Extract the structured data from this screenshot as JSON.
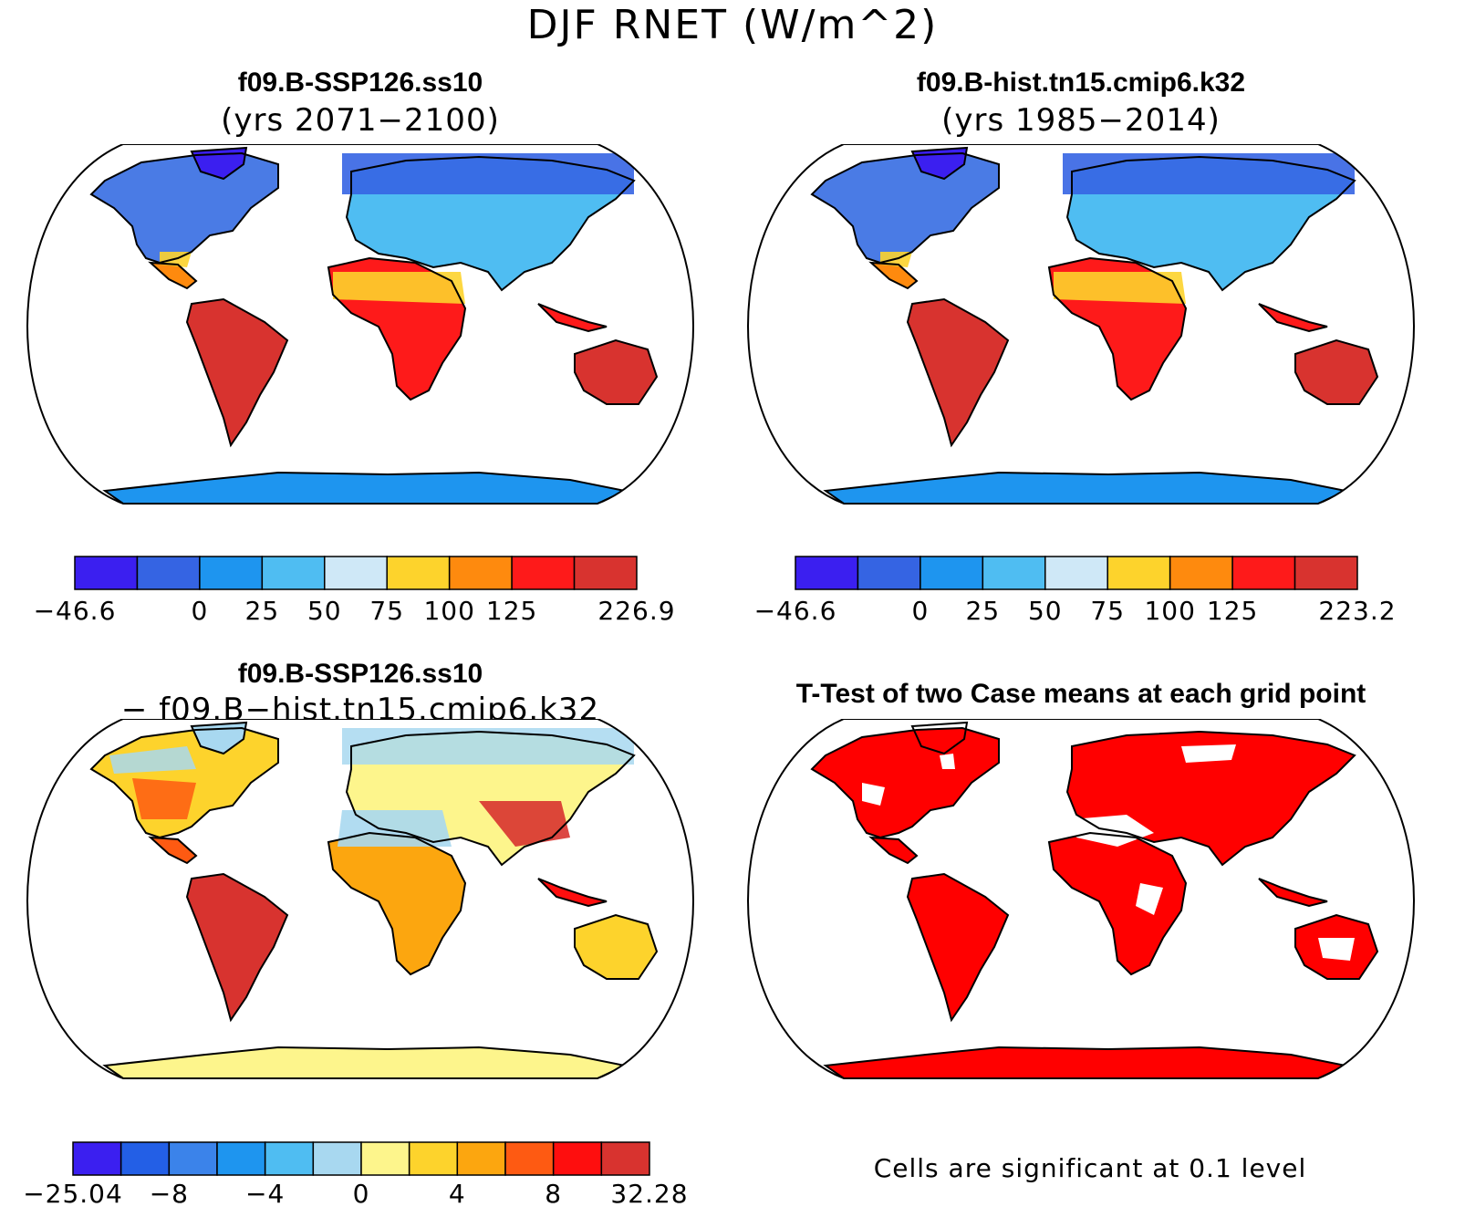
{
  "figure": {
    "title": "DJF RNET (W/m^2)"
  },
  "panels": [
    {
      "id": "future",
      "title_line1": "f09.B-SSP126.ss10",
      "title_line2": "(yrs 2071−2100)",
      "type": "filled contour map",
      "colorbar": {
        "colors": [
          "#3b1ff0",
          "#3564e3",
          "#1e95ef",
          "#4fbdf2",
          "#cfe8f7",
          "#fdd32c",
          "#fe8a0e",
          "#fe1a1a",
          "#d8332f"
        ],
        "labels": [
          "−46.6",
          "0",
          "25",
          "50",
          "75",
          "100",
          "125",
          "226.9"
        ],
        "label_edges": [
          0,
          2,
          3,
          4,
          5,
          6,
          7,
          9
        ]
      }
    },
    {
      "id": "historical",
      "title_line1": "f09.B-hist.tn15.cmip6.k32",
      "title_line2": "(yrs 1985−2014)",
      "type": "filled contour map",
      "colorbar": {
        "colors": [
          "#3b1ff0",
          "#3564e3",
          "#1e95ef",
          "#4fbdf2",
          "#cfe8f7",
          "#fdd32c",
          "#fe8a0e",
          "#fe1a1a",
          "#d8332f"
        ],
        "labels": [
          "−46.6",
          "0",
          "25",
          "50",
          "75",
          "100",
          "125",
          "223.2"
        ],
        "label_edges": [
          0,
          2,
          3,
          4,
          5,
          6,
          7,
          9
        ]
      }
    },
    {
      "id": "difference",
      "title_line1": "f09.B-SSP126.ss10",
      "title_line2": "− f09.B−hist.tn15.cmip6.k32",
      "type": "filled contour map",
      "colorbar": {
        "colors": [
          "#3b1ff0",
          "#235fe6",
          "#3b83ea",
          "#1e95ef",
          "#4fbdf2",
          "#a8d8f0",
          "#fdf58c",
          "#fdd32c",
          "#fca60f",
          "#fe5a12",
          "#fe0e0e",
          "#d8332f"
        ],
        "labels": [
          "−25.04",
          "−8",
          "−4",
          "0",
          "4",
          "8",
          "32.28"
        ],
        "label_edges": [
          0,
          2,
          4,
          6,
          8,
          10,
          12
        ]
      }
    },
    {
      "id": "ttest",
      "title_line1": "T-Test of two Case means at each grid point",
      "type": "significance mask map",
      "note": "Cells are significant at 0.1 level",
      "mask_color": "#ff0000"
    }
  ]
}
